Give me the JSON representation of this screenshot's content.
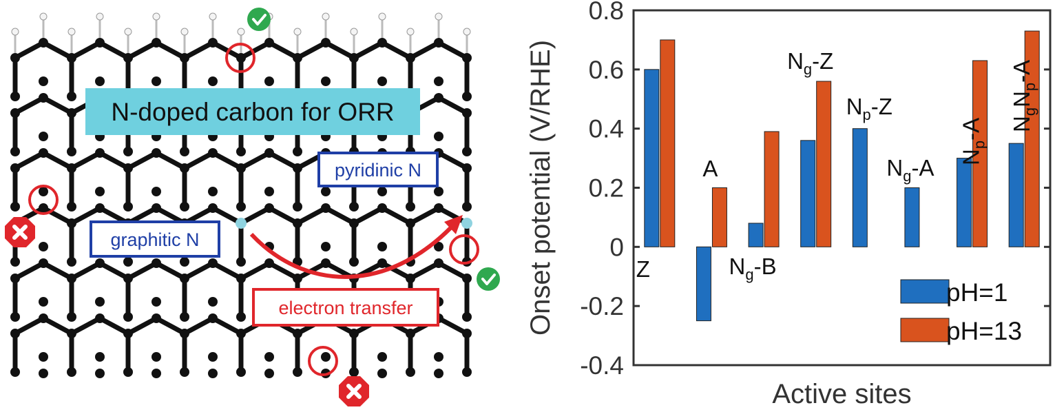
{
  "schematic": {
    "title_box": "N-doped carbon for ORR",
    "pyridinic_label": "pyridinic N",
    "graphitic_label": "graphitic N",
    "transfer_label": "electron transfer",
    "colors": {
      "title_fill": "#6fd0df",
      "label_border": "#1f3fa6",
      "label_text": "#1f3fa6",
      "transfer_red": "#e0262b",
      "carbon": "#111111",
      "nitrogen": "#8fd3e0",
      "hydrogen": "#f2f2f2",
      "check_green": "#2fa84f"
    },
    "icons": [
      "check-icon",
      "cross-icon"
    ]
  },
  "chart_data": {
    "type": "bar",
    "ylabel": "Onset potential (V/RHE)",
    "xlabel": "Active sites",
    "ylim": [
      -0.4,
      0.8
    ],
    "yticks": [
      "-0.4",
      "-0.2",
      "0",
      "0.2",
      "0.4",
      "0.6",
      "0.8"
    ],
    "yticks_values": [
      -0.4,
      -0.2,
      0,
      0.2,
      0.4,
      0.6,
      0.8
    ],
    "categories": [
      "Z",
      "A",
      "Ng-B",
      "Ng-Z",
      "Np-Z",
      "Ng-A",
      "Np-A",
      "NgNp-A"
    ],
    "series": [
      {
        "name": "pH=1",
        "color": "#1f6fbf",
        "values": [
          0.6,
          -0.25,
          0.08,
          0.36,
          0.4,
          0.2,
          0.3,
          0.35
        ]
      },
      {
        "name": "pH=13",
        "color": "#d9531e",
        "values": [
          0.7,
          0.2,
          0.39,
          0.56,
          null,
          null,
          0.63,
          0.73
        ]
      }
    ],
    "legend_position": "bottom-right",
    "bar_labels": [
      {
        "main": "Z",
        "sub": "",
        "tail": ""
      },
      {
        "main": "A",
        "sub": "",
        "tail": ""
      },
      {
        "main": "N",
        "sub": "g",
        "tail": "-B"
      },
      {
        "main": "N",
        "sub": "g",
        "tail": "-Z"
      },
      {
        "main": "N",
        "sub": "p",
        "tail": "-Z"
      },
      {
        "main": "N",
        "sub": "g",
        "tail": "-A"
      },
      {
        "main": "N",
        "sub": "p",
        "tail": "-A"
      },
      {
        "main": "N",
        "sub": "g",
        "tail": "N",
        "sub2": "p",
        "tail2": "-A"
      }
    ]
  }
}
